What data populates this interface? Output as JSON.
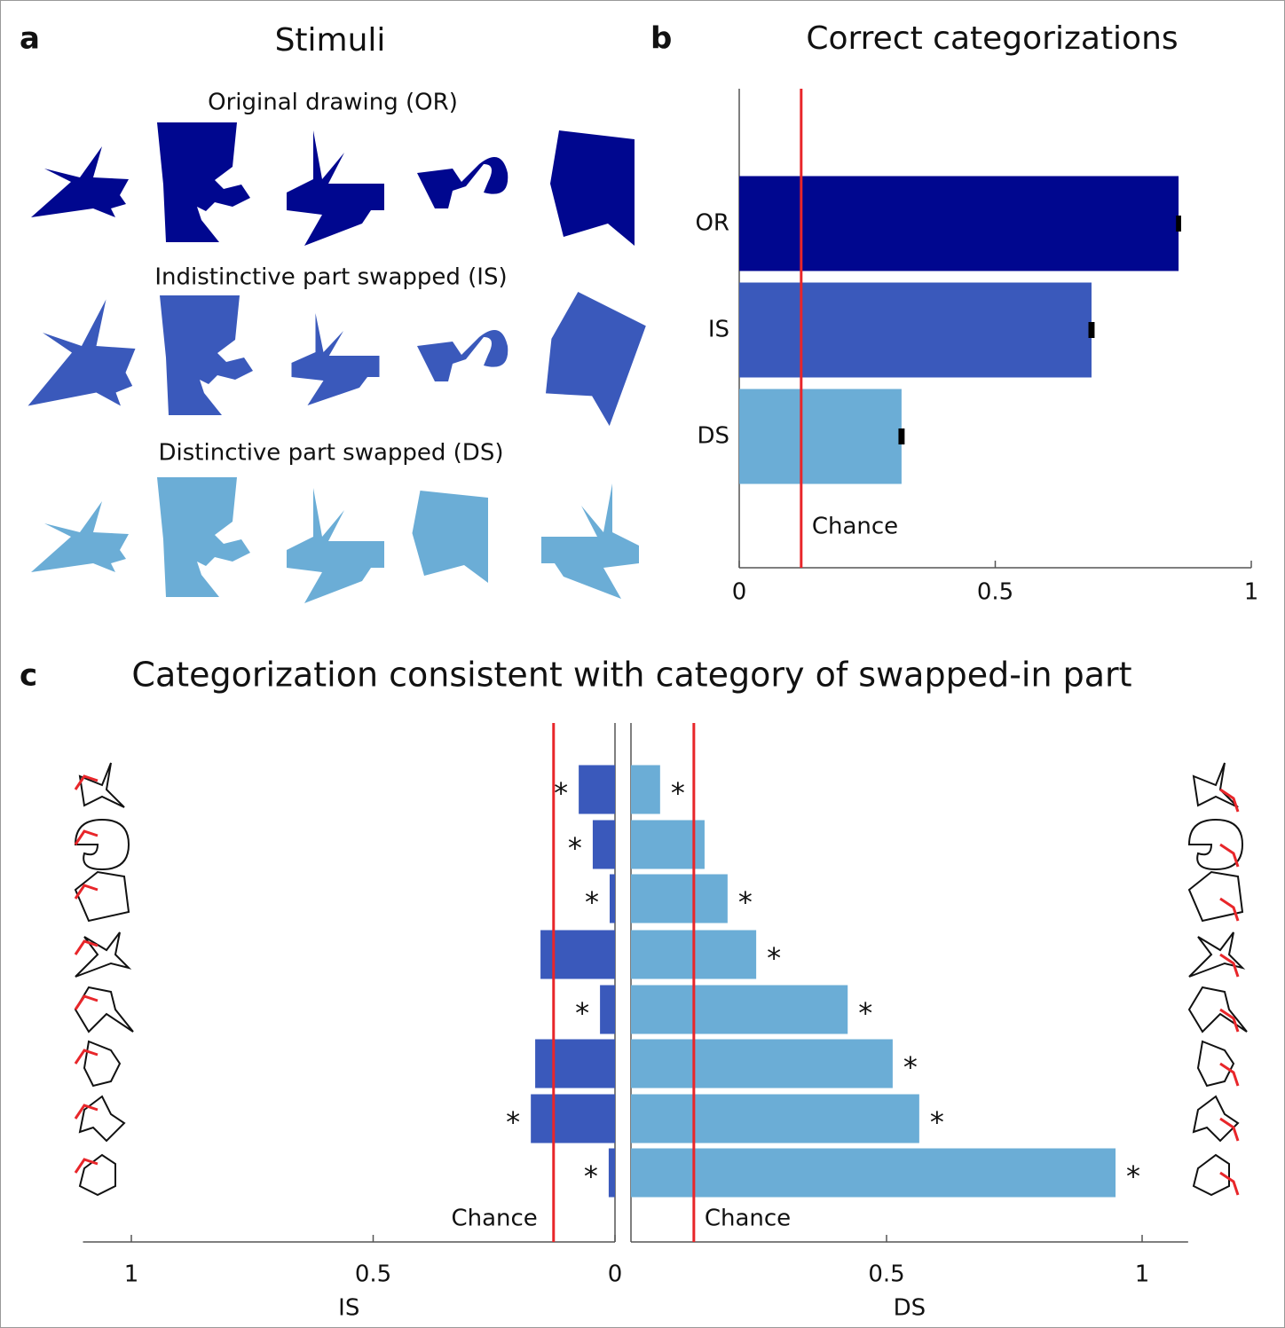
{
  "panel_a": {
    "label": "a",
    "title": "Stimuli",
    "rows": [
      "Original drawing (OR)",
      "Indistinctive part swapped (IS)",
      "Distinctive part swapped (DS)"
    ]
  },
  "panel_c": {
    "label": "c",
    "title": "Categorization consistent with category of swapped-in part"
  },
  "chart_data": [
    {
      "type": "bar",
      "orientation": "horizontal",
      "panel_label": "b",
      "title": "Correct categorizations",
      "categories": [
        "OR",
        "IS",
        "DS"
      ],
      "values": [
        0.858,
        0.688,
        0.317
      ],
      "errors": [
        0.005,
        0.006,
        0.006
      ],
      "colors": [
        "#00078f",
        "#3a59bb",
        "#6badd6"
      ],
      "error_color": "#000000",
      "xlim": [
        0,
        1
      ],
      "xticks": [
        0,
        0.5,
        1
      ],
      "chance": 0.121,
      "chance_label": "Chance",
      "chance_color": "#e8262a"
    },
    {
      "type": "bar",
      "orientation": "horizontal",
      "x_reversed": true,
      "xlabel": "IS",
      "categories": [
        null,
        null,
        null,
        null,
        null,
        null,
        null,
        null
      ],
      "values": [
        0.075,
        0.046,
        0.011,
        0.154,
        0.031,
        0.165,
        0.174,
        0.013
      ],
      "markers": [
        "*",
        "*",
        "*",
        null,
        "*",
        null,
        "*",
        "*"
      ],
      "color": "#3a59bb",
      "xlim": [
        0,
        1.1
      ],
      "xticks": [
        0,
        0.5,
        1
      ],
      "chance": 0.127,
      "chance_label": "Chance",
      "chance_color": "#e8262a"
    },
    {
      "type": "bar",
      "orientation": "horizontal",
      "xlabel": "DS",
      "categories": [
        null,
        null,
        null,
        null,
        null,
        null,
        null,
        null
      ],
      "values": [
        0.057,
        0.144,
        0.189,
        0.245,
        0.424,
        0.512,
        0.564,
        0.948
      ],
      "markers": [
        "*",
        null,
        "*",
        "*",
        "*",
        "*",
        "*",
        "*"
      ],
      "color": "#6badd6",
      "xlim": [
        0,
        1.09
      ],
      "xticks": [
        0.5,
        1
      ],
      "chance": 0.123,
      "chance_label": "Chance",
      "chance_color": "#e8262a"
    }
  ]
}
